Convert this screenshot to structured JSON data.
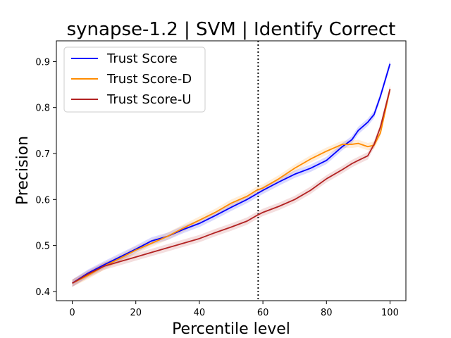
{
  "chart_data": {
    "type": "line",
    "title": "synapse-1.2 | SVM | Identify Correct",
    "xlabel": "Percentile level",
    "ylabel": "Precision",
    "xlim": [
      -5,
      105
    ],
    "ylim": [
      0.38,
      0.945
    ],
    "xticks": [
      0,
      20,
      40,
      60,
      80,
      100
    ],
    "yticks": [
      0.4,
      0.5,
      0.6,
      0.7,
      0.8,
      0.9
    ],
    "grid": false,
    "legend_position": "top-left",
    "vline_x": 58.5,
    "x": [
      0,
      5,
      10,
      15,
      20,
      25,
      30,
      35,
      40,
      45,
      50,
      55,
      58,
      60,
      65,
      70,
      75,
      80,
      85,
      88,
      90,
      93,
      95,
      97,
      100
    ],
    "series": [
      {
        "name": "Trust Score",
        "color": "#0000ff",
        "values": [
          0.418,
          0.44,
          0.458,
          0.475,
          0.492,
          0.51,
          0.52,
          0.535,
          0.548,
          0.565,
          0.583,
          0.6,
          0.612,
          0.62,
          0.638,
          0.655,
          0.668,
          0.685,
          0.715,
          0.73,
          0.75,
          0.768,
          0.785,
          0.825,
          0.895
        ],
        "band": 0.008
      },
      {
        "name": "Trust Score-D",
        "color": "#ff8c00",
        "values": [
          0.418,
          0.435,
          0.455,
          0.472,
          0.49,
          0.505,
          0.52,
          0.538,
          0.555,
          0.572,
          0.592,
          0.607,
          0.62,
          0.625,
          0.645,
          0.668,
          0.688,
          0.705,
          0.72,
          0.72,
          0.722,
          0.715,
          0.718,
          0.745,
          0.84
        ],
        "band": 0.008
      },
      {
        "name": "Trust Score-U",
        "color": "#b22222",
        "values": [
          0.418,
          0.438,
          0.455,
          0.465,
          0.475,
          0.485,
          0.495,
          0.505,
          0.515,
          0.528,
          0.54,
          0.553,
          0.565,
          0.572,
          0.585,
          0.6,
          0.62,
          0.645,
          0.665,
          0.678,
          0.685,
          0.695,
          0.72,
          0.758,
          0.84
        ],
        "band": 0.008
      }
    ]
  }
}
